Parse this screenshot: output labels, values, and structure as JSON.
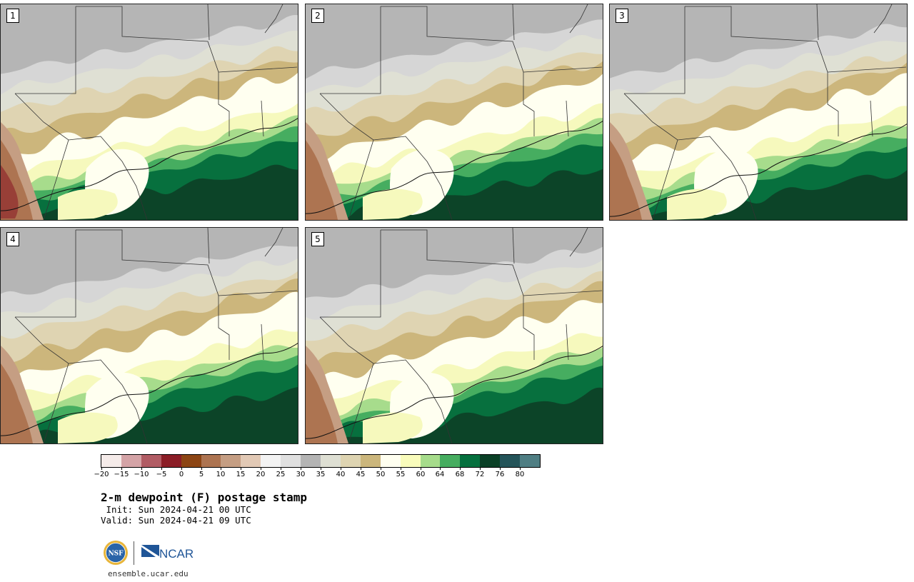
{
  "panels": [
    {
      "label": "1"
    },
    {
      "label": "2"
    },
    {
      "label": "3"
    },
    {
      "label": "4"
    },
    {
      "label": "5"
    }
  ],
  "colorbar": {
    "colors": [
      "#f5ebe9",
      "#d4a3a6",
      "#b15c64",
      "#8b1d26",
      "#8c4514",
      "#ad7451",
      "#c59e83",
      "#e2c9b5",
      "#f3f3f3",
      "#e0e0e0",
      "#b4b4b4",
      "#dedfd3",
      "#ded4b1",
      "#cbb67c",
      "#fffff0",
      "#f9fcbb",
      "#a6dc8b",
      "#46ad60",
      "#05703e",
      "#0a4026",
      "#245459",
      "#4f7e83"
    ],
    "tick_labels": [
      "−20",
      "−15",
      "−10",
      "−5",
      "0",
      "5",
      "10",
      "15",
      "20",
      "25",
      "30",
      "35",
      "40",
      "45",
      "50",
      "55",
      "60",
      "64",
      "68",
      "72",
      "76",
      "80"
    ]
  },
  "title": "2-m dewpoint (F) postage stamp",
  "init": " Init: Sun 2024-04-21 00 UTC",
  "valid": "Valid: Sun 2024-04-21 09 UTC",
  "logos": {
    "nsf_text": "NSF",
    "ncar_text": "NCAR"
  },
  "website": "ensemble.ucar.edu"
}
